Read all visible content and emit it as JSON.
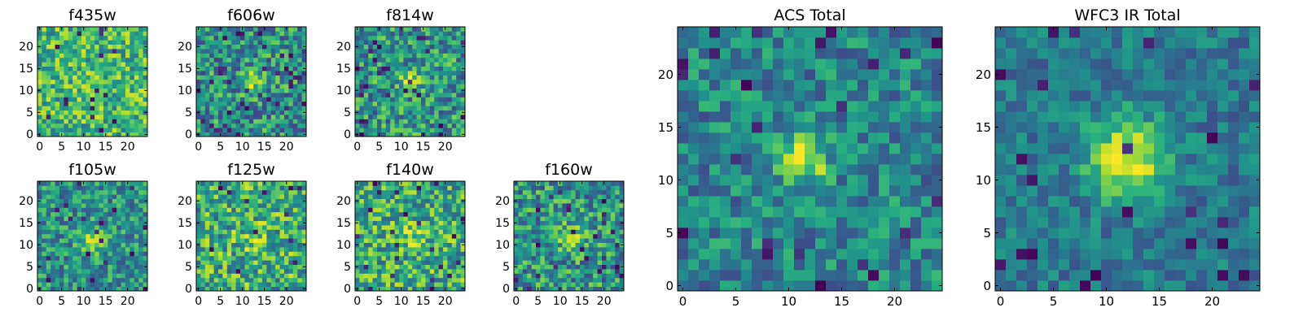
{
  "figure": {
    "colormap": [
      "#440154",
      "#472d7b",
      "#3b528b",
      "#2c728e",
      "#21918c",
      "#28ae80",
      "#5ec962",
      "#addc30",
      "#fde725"
    ],
    "frame_color": "#000000"
  },
  "chart_data": [
    {
      "type": "heatmap",
      "title": "f435w",
      "grid_size": 25,
      "xlim": [
        0,
        24
      ],
      "ylim": [
        0,
        24
      ],
      "xticks": [
        0,
        5,
        10,
        15,
        20
      ],
      "yticks": [
        0,
        5,
        10,
        15,
        20
      ],
      "seed": 11,
      "bias": 0.66,
      "noise": 0.28,
      "source": {
        "x": 11,
        "y": 12,
        "sigma": 2.2,
        "amp": 0.08
      },
      "dark_fraction": 0.03
    },
    {
      "type": "heatmap",
      "title": "f606w",
      "grid_size": 25,
      "xlim": [
        0,
        24
      ],
      "ylim": [
        0,
        24
      ],
      "xticks": [
        0,
        5,
        10,
        15,
        20
      ],
      "yticks": [
        0,
        5,
        10,
        15,
        20
      ],
      "seed": 23,
      "bias": 0.5,
      "noise": 0.3,
      "source": {
        "x": 12,
        "y": 12,
        "sigma": 1.6,
        "amp": 0.45
      },
      "dark_fraction": 0.05
    },
    {
      "type": "heatmap",
      "title": "f814w",
      "grid_size": 25,
      "xlim": [
        0,
        24
      ],
      "ylim": [
        0,
        24
      ],
      "xticks": [
        0,
        5,
        10,
        15,
        20
      ],
      "yticks": [
        0,
        5,
        10,
        15,
        20
      ],
      "seed": 37,
      "bias": 0.52,
      "noise": 0.3,
      "source": {
        "x": 12,
        "y": 12,
        "sigma": 1.5,
        "amp": 0.4
      },
      "dark_fraction": 0.05
    },
    {
      "type": "heatmap",
      "title": "f105w",
      "grid_size": 25,
      "xlim": [
        0,
        24
      ],
      "ylim": [
        0,
        24
      ],
      "xticks": [
        0,
        5,
        10,
        15,
        20
      ],
      "yticks": [
        0,
        5,
        10,
        15,
        20
      ],
      "seed": 41,
      "bias": 0.5,
      "noise": 0.26,
      "source": {
        "x": 12,
        "y": 11,
        "sigma": 2.2,
        "amp": 0.3
      },
      "dark_fraction": 0.03
    },
    {
      "type": "heatmap",
      "title": "f125w",
      "grid_size": 25,
      "xlim": [
        0,
        24
      ],
      "ylim": [
        0,
        24
      ],
      "xticks": [
        0,
        5,
        10,
        15,
        20
      ],
      "yticks": [
        0,
        5,
        10,
        15,
        20
      ],
      "seed": 53,
      "bias": 0.62,
      "noise": 0.32,
      "source": {
        "x": 12,
        "y": 11,
        "sigma": 2.5,
        "amp": 0.1
      },
      "dark_fraction": 0.02
    },
    {
      "type": "heatmap",
      "title": "f140w",
      "grid_size": 25,
      "xlim": [
        0,
        24
      ],
      "ylim": [
        0,
        24
      ],
      "xticks": [
        0,
        5,
        10,
        15,
        20
      ],
      "yticks": [
        0,
        5,
        10,
        15,
        20
      ],
      "seed": 67,
      "bias": 0.62,
      "noise": 0.3,
      "source": {
        "x": 12,
        "y": 12,
        "sigma": 2.2,
        "amp": 0.15
      },
      "dark_fraction": 0.03
    },
    {
      "type": "heatmap",
      "title": "f160w",
      "grid_size": 25,
      "xlim": [
        0,
        24
      ],
      "ylim": [
        0,
        24
      ],
      "xticks": [
        0,
        5,
        10,
        15,
        20
      ],
      "yticks": [
        0,
        5,
        10,
        15,
        20
      ],
      "seed": 79,
      "bias": 0.52,
      "noise": 0.3,
      "source": {
        "x": 12,
        "y": 12,
        "sigma": 2.0,
        "amp": 0.3
      },
      "dark_fraction": 0.04
    },
    {
      "type": "heatmap",
      "title": "ACS Total",
      "grid_size": 25,
      "xlim": [
        0,
        24
      ],
      "ylim": [
        0,
        24
      ],
      "xticks": [
        0,
        5,
        10,
        15,
        20
      ],
      "yticks": [
        0,
        5,
        10,
        15,
        20
      ],
      "seed": 97,
      "bias": 0.45,
      "noise": 0.22,
      "source": {
        "x": 11.5,
        "y": 12,
        "sigma": 1.5,
        "amp": 0.55
      },
      "dark_fraction": 0.04
    },
    {
      "type": "heatmap",
      "title": "WFC3 IR Total",
      "grid_size": 25,
      "xlim": [
        0,
        24
      ],
      "ylim": [
        0,
        24
      ],
      "xticks": [
        0,
        5,
        10,
        15,
        20
      ],
      "yticks": [
        0,
        5,
        10,
        15,
        20
      ],
      "seed": 113,
      "bias": 0.4,
      "noise": 0.16,
      "source": {
        "x": 12,
        "y": 12,
        "sigma": 2.6,
        "amp": 0.6
      },
      "dark_fraction": 0.04
    }
  ]
}
